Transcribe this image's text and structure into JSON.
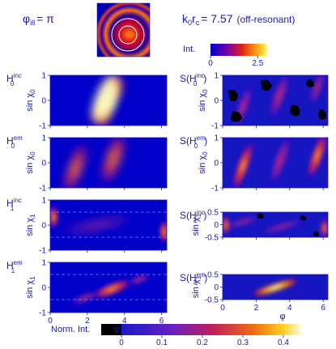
{
  "header": {
    "phi_label": "φ",
    "phi_sub": "ill",
    "phi_value": "= π",
    "kr_label": "k",
    "kr_sub1": "0",
    "kr_mid": "r",
    "kr_sub2": "c",
    "kr_value": "= 7.57",
    "kr_note": "(off-resonant)"
  },
  "colorbar_top": {
    "label": "Int.",
    "ticks": [
      "0",
      "2.5"
    ],
    "range": [
      0,
      3
    ]
  },
  "colorbar_bottom": {
    "label": "Norm. Int.",
    "ticks": [
      "0",
      "0.1",
      "0.2",
      "0.3",
      "0.4"
    ],
    "range": [
      -0.05,
      0.45
    ]
  },
  "panels_left": [
    {
      "name": "H0-inc",
      "label_main": "H",
      "label_sub": "0",
      "label_sup": "inc",
      "ylabel": "sin χ",
      "ysub": "0",
      "yticks": [
        "-1",
        "0",
        "1"
      ],
      "ylim": [
        -1,
        1
      ]
    },
    {
      "name": "H0-em",
      "label_main": "H",
      "label_sub": "0",
      "label_sup": "em",
      "ylabel": "sin χ",
      "ysub": "0",
      "yticks": [
        "-1",
        "0",
        "1"
      ],
      "ylim": [
        -1,
        1
      ]
    },
    {
      "name": "H1-inc",
      "label_main": "H",
      "label_sub": "1",
      "label_sup": "inc",
      "ylabel": "sin χ",
      "ysub": "1",
      "yticks": [
        "-1",
        "0",
        "1"
      ],
      "ylim": [
        -1,
        1
      ]
    },
    {
      "name": "H1-em",
      "label_main": "H",
      "label_sub": "1",
      "label_sup": "em",
      "ylabel": "sin χ",
      "ysub": "1",
      "yticks": [
        "-1",
        "0",
        "1"
      ],
      "ylim": [
        -1,
        1
      ]
    }
  ],
  "panels_right": [
    {
      "name": "S-H0-inc",
      "label": "S(H",
      "label_sub": "0",
      "label_sup": "inc",
      "label_end": ")",
      "ylabel": "sin χ",
      "ysub": "0",
      "yticks": [
        "-1",
        "0",
        "1"
      ],
      "ylim": [
        -1,
        1
      ]
    },
    {
      "name": "S-H0-em",
      "label": "S(H",
      "label_sub": "0",
      "label_sup": "em",
      "label_end": ")",
      "ylabel": "sin χ",
      "ysub": "0",
      "yticks": [
        "-1",
        "0",
        "1"
      ],
      "ylim": [
        -1,
        1
      ]
    },
    {
      "name": "S-H1-inc",
      "label": "S(H",
      "label_sub": "1",
      "label_sup": "inc",
      "label_end": ")",
      "ylabel": "sin χ",
      "ysub": "1",
      "yticks": [
        "-0.5",
        "0",
        "0.5"
      ],
      "ylim": [
        -0.5,
        0.5
      ]
    },
    {
      "name": "S-H1-em",
      "label": "S(H",
      "label_sub": "1",
      "label_sup": "em",
      "label_end": ")",
      "ylabel": "sin χ",
      "ysub": "1",
      "yticks": [
        "-0.5",
        "0",
        "0.5"
      ],
      "ylim": [
        -0.5,
        0.5
      ]
    }
  ],
  "xaxis": {
    "label": "φ",
    "ticks": [
      "0",
      "2",
      "4",
      "6"
    ],
    "xlim": [
      0,
      6.28
    ]
  }
}
